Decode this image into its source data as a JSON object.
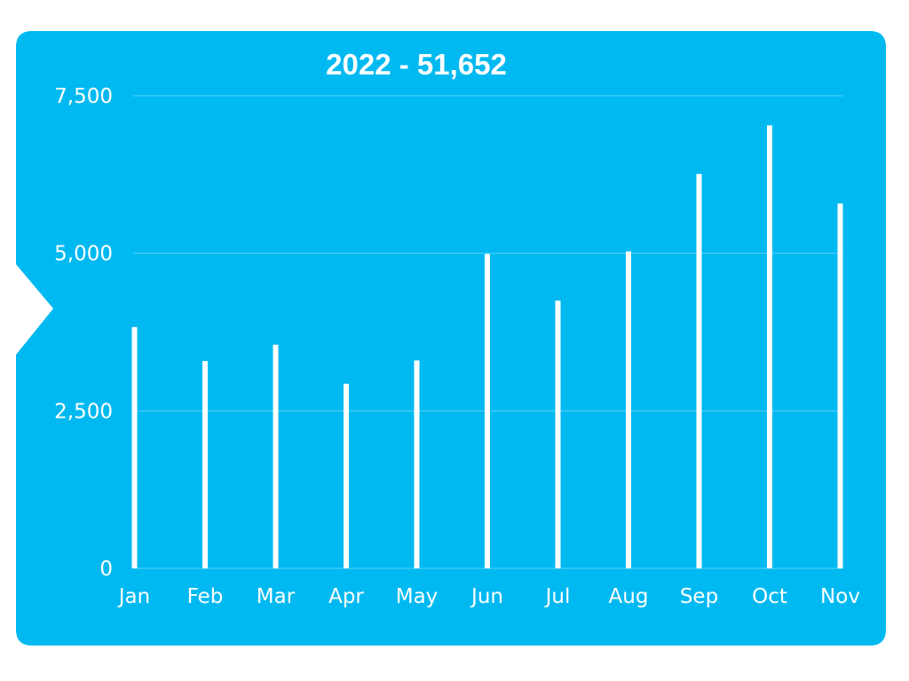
{
  "colors": {
    "panel": "#00b9f1",
    "bar": "#ffffff",
    "text": "#ffffff"
  },
  "chart_data": {
    "type": "bar",
    "title": "2022 - 51,652",
    "categories": [
      "Jan",
      "Feb",
      "Mar",
      "Apr",
      "May",
      "Jun",
      "Jul",
      "Aug",
      "Sep",
      "Oct",
      "Nov"
    ],
    "values": [
      3830,
      3290,
      3550,
      2930,
      3300,
      4990,
      4250,
      5030,
      6260,
      7030,
      5790
    ],
    "ylim": [
      0,
      7500
    ],
    "yticks": [
      0,
      2500,
      5000,
      7500
    ],
    "ytick_labels": [
      "0",
      "2,500",
      "5,000",
      "7,500"
    ],
    "grid": true,
    "xlabel": "",
    "ylabel": ""
  }
}
